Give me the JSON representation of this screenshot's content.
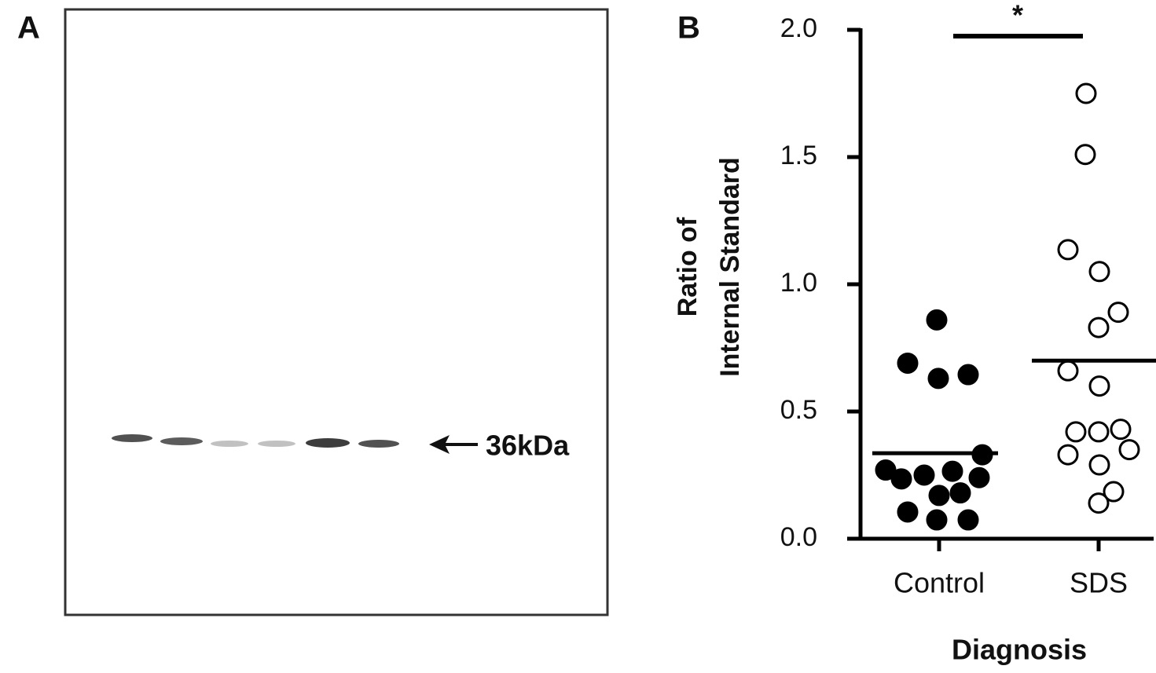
{
  "panel_a": {
    "label": "A",
    "marker": "36kDa"
  },
  "chart_data": {
    "type": "dot",
    "panel_label": "B",
    "y_label": [
      "Ratio of",
      "Internal Standard"
    ],
    "x_label": "Diagnosis",
    "categories": [
      "Control",
      "SDS"
    ],
    "values": [
      [
        0.86,
        0.69,
        0.63,
        0.645,
        0.33,
        0.27,
        0.235,
        0.25,
        0.265,
        0.24,
        0.17,
        0.18,
        0.105,
        0.074,
        0.074
      ],
      [
        1.75,
        1.51,
        1.136,
        1.05,
        0.89,
        0.83,
        0.66,
        0.6,
        0.42,
        0.43,
        0.42,
        0.35,
        0.33,
        0.29,
        0.185,
        0.14
      ]
    ],
    "means": [
      0.336,
      0.7
    ],
    "markers": [
      "filled",
      "open"
    ],
    "color": "#000000",
    "significance_label": "*",
    "ylim": [
      0,
      2
    ],
    "yticks": [
      {
        "value": 0,
        "label": "0.0"
      },
      {
        "value": 0.5,
        "label": "0.5"
      },
      {
        "value": 1,
        "label": "1.0"
      },
      {
        "value": 1.5,
        "label": "1.5"
      },
      {
        "value": 2,
        "label": "2.0"
      }
    ]
  }
}
